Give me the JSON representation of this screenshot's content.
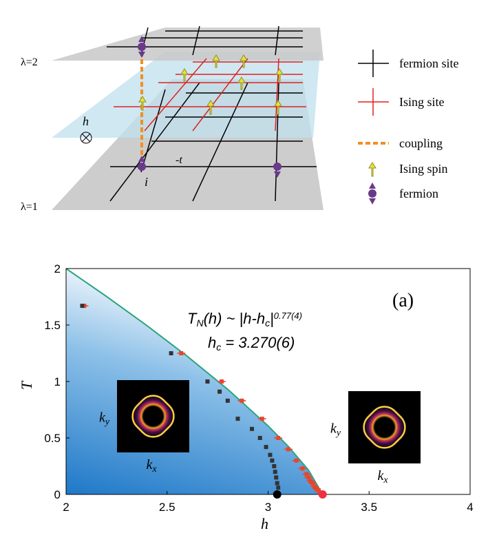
{
  "diagram": {
    "lambda2": "λ=2",
    "lambda1": "λ=1",
    "field": "h",
    "hopping": "-t",
    "site": "i",
    "legend": [
      "fermion site",
      "Ising site",
      "coupling",
      "Ising spin",
      "fermion"
    ]
  },
  "chart_data": {
    "type": "scatter",
    "xlabel": "h",
    "ylabel": "T",
    "panel": "(a)",
    "annotation": {
      "line1": [
        "T",
        "N",
        "(h) ~ |h-h",
        "c",
        "|",
        "0.77(4)"
      ],
      "line2": [
        "h",
        "c",
        " = 3.270(6)"
      ]
    },
    "insets": [
      {
        "ylabel": [
          "k",
          "y"
        ],
        "xlabel": [
          "k",
          "x"
        ]
      },
      {
        "ylabel": [
          "k",
          "y"
        ],
        "xlabel": [
          "k",
          "x"
        ]
      }
    ],
    "xlim": [
      2,
      4
    ],
    "ylim": [
      0,
      2
    ],
    "xticks": [
      2,
      2.5,
      3,
      3.5,
      4
    ],
    "yticks": [
      0,
      0.5,
      1,
      1.5,
      2
    ],
    "fit": {
      "color": "#2aa57e",
      "x": [
        2.0,
        2.2,
        2.4,
        2.6,
        2.8,
        3.0,
        3.1,
        3.2,
        3.27
      ],
      "values": [
        2.0,
        1.753,
        1.495,
        1.223,
        0.931,
        0.607,
        0.425,
        0.215,
        0
      ]
    },
    "series": [
      {
        "color": "#e8452c",
        "x": [
          2.09,
          2.57,
          2.77,
          2.87,
          2.97,
          3.05,
          3.1,
          3.14,
          3.17,
          3.19,
          3.2,
          3.21,
          3.22,
          3.23,
          3.24,
          3.25
        ],
        "values": [
          1.67,
          1.25,
          1.0,
          0.83,
          0.67,
          0.5,
          0.4,
          0.3,
          0.23,
          0.18,
          0.15,
          0.12,
          0.1,
          0.07,
          0.05,
          0.03
        ]
      },
      {
        "color": "#333333",
        "x": [
          2.08,
          2.52,
          2.7,
          2.76,
          2.8,
          2.85,
          2.92,
          2.96,
          2.99,
          3.01,
          3.02,
          3.03,
          3.035,
          3.04,
          3.045,
          3.05
        ],
        "values": [
          1.67,
          1.25,
          1.0,
          0.91,
          0.83,
          0.67,
          0.58,
          0.5,
          0.42,
          0.35,
          0.3,
          0.25,
          0.2,
          0.15,
          0.1,
          0.06
        ]
      }
    ],
    "critical_points": {
      "x": [
        3.045,
        3.27
      ],
      "values": [
        0,
        0
      ],
      "colors": [
        "#000000",
        "#f03040"
      ]
    }
  }
}
